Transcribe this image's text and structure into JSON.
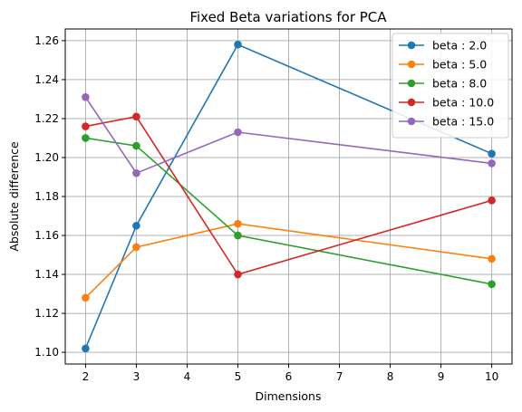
{
  "chart_data": {
    "type": "line",
    "title": "Fixed Beta variations for PCA",
    "xlabel": "Dimensions",
    "ylabel": "Absolute difference",
    "x": [
      2,
      3,
      5,
      10
    ],
    "xlim": [
      1.6,
      10.4
    ],
    "ylim": [
      1.094,
      1.266
    ],
    "xticks": [
      2,
      3,
      4,
      5,
      6,
      7,
      8,
      9,
      10
    ],
    "xtick_labels": [
      "2",
      "3",
      "4",
      "5",
      "6",
      "7",
      "8",
      "9",
      "10"
    ],
    "yticks": [
      1.1,
      1.12,
      1.14,
      1.16,
      1.18,
      1.2,
      1.22,
      1.24,
      1.26
    ],
    "ytick_labels": [
      "1.10",
      "1.12",
      "1.14",
      "1.16",
      "1.18",
      "1.20",
      "1.22",
      "1.24",
      "1.26"
    ],
    "grid": true,
    "legend_position": "upper right",
    "series": [
      {
        "name": "beta : 2.0",
        "color": "#1f77b4",
        "values": [
          1.102,
          1.165,
          1.258,
          1.202
        ]
      },
      {
        "name": "beta : 5.0",
        "color": "#ff7f0e",
        "values": [
          1.128,
          1.154,
          1.166,
          1.148
        ]
      },
      {
        "name": "beta : 8.0",
        "color": "#2ca02c",
        "values": [
          1.21,
          1.206,
          1.16,
          1.135
        ]
      },
      {
        "name": "beta : 10.0",
        "color": "#d62728",
        "values": [
          1.216,
          1.221,
          1.14,
          1.178
        ]
      },
      {
        "name": "beta : 15.0",
        "color": "#9467bd",
        "values": [
          1.231,
          1.192,
          1.213,
          1.197
        ]
      }
    ]
  }
}
